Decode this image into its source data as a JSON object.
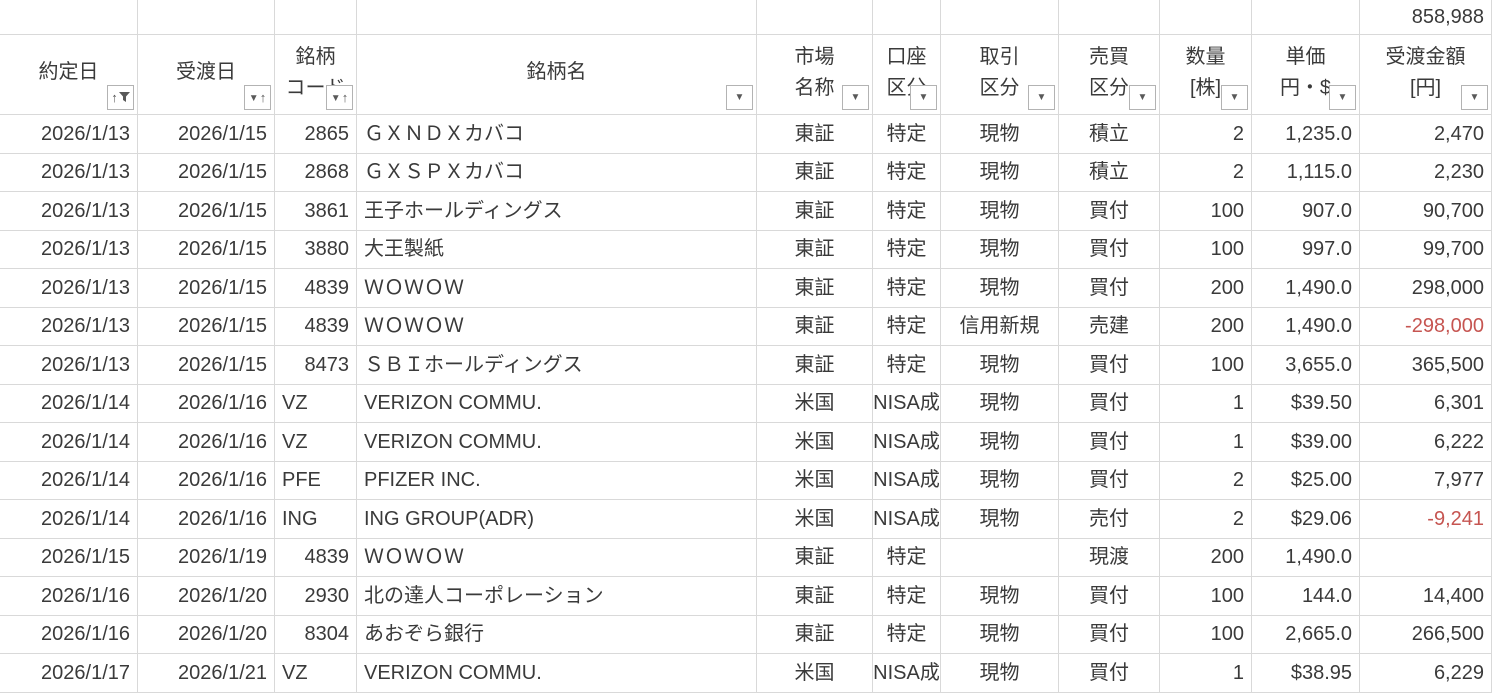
{
  "sheet": {
    "total_top_right": "858,988",
    "colors": {
      "negative": "#c65551",
      "text": "#3a3a3a",
      "gridline": "#d9d9d9"
    },
    "columns": [
      {
        "id": "trade_date",
        "line1": "約定日",
        "line2": "",
        "filter_icon": "sort-asc-filter-icon",
        "align": "right"
      },
      {
        "id": "settlement_date",
        "line1": "受渡日",
        "line2": "",
        "filter_icon": "sort-asc-icon",
        "align": "right"
      },
      {
        "id": "code",
        "line1": "銘柄",
        "line2": "コード",
        "filter_icon": "sort-asc-icon",
        "align": "auto"
      },
      {
        "id": "name",
        "line1": "銘柄名",
        "line2": "",
        "filter_icon": "dropdown-icon",
        "align": "left"
      },
      {
        "id": "market",
        "line1": "市場",
        "line2": "名称",
        "filter_icon": "dropdown-icon",
        "align": "center"
      },
      {
        "id": "account",
        "line1": "口座",
        "line2": "区分",
        "filter_icon": "dropdown-icon",
        "align": "center"
      },
      {
        "id": "transaction",
        "line1": "取引",
        "line2": "区分",
        "filter_icon": "dropdown-icon",
        "align": "center"
      },
      {
        "id": "side",
        "line1": "売買",
        "line2": "区分",
        "filter_icon": "dropdown-icon",
        "align": "center"
      },
      {
        "id": "quantity",
        "line1": "数量",
        "line2": "[株]",
        "filter_icon": "dropdown-icon",
        "align": "right"
      },
      {
        "id": "price",
        "line1": "単価",
        "line2": "円・$",
        "filter_icon": "dropdown-icon",
        "align": "right"
      },
      {
        "id": "amount",
        "line1": "受渡金額",
        "line2": "[円]",
        "filter_icon": "dropdown-icon",
        "align": "right"
      }
    ],
    "rows": [
      [
        "2026/1/13",
        "2026/1/15",
        "2865",
        "ＧＸＮＤＸカバコ",
        "東証",
        "特定",
        "現物",
        "積立",
        "2",
        "1,235.0",
        "2,470"
      ],
      [
        "2026/1/13",
        "2026/1/15",
        "2868",
        "ＧＸＳＰＸカバコ",
        "東証",
        "特定",
        "現物",
        "積立",
        "2",
        "1,115.0",
        "2,230"
      ],
      [
        "2026/1/13",
        "2026/1/15",
        "3861",
        "王子ホールディングス",
        "東証",
        "特定",
        "現物",
        "買付",
        "100",
        "907.0",
        "90,700"
      ],
      [
        "2026/1/13",
        "2026/1/15",
        "3880",
        "大王製紙",
        "東証",
        "特定",
        "現物",
        "買付",
        "100",
        "997.0",
        "99,700"
      ],
      [
        "2026/1/13",
        "2026/1/15",
        "4839",
        "ＷＯＷＯＷ",
        "東証",
        "特定",
        "現物",
        "買付",
        "200",
        "1,490.0",
        "298,000"
      ],
      [
        "2026/1/13",
        "2026/1/15",
        "4839",
        "ＷＯＷＯＷ",
        "東証",
        "特定",
        "信用新規",
        "売建",
        "200",
        "1,490.0",
        "-298,000"
      ],
      [
        "2026/1/13",
        "2026/1/15",
        "8473",
        "ＳＢＩホールディングス",
        "東証",
        "特定",
        "現物",
        "買付",
        "100",
        "3,655.0",
        "365,500"
      ],
      [
        "2026/1/14",
        "2026/1/16",
        "VZ",
        "VERIZON COMMU.",
        "米国",
        "NISA成",
        "現物",
        "買付",
        "1",
        "$39.50",
        "6,301"
      ],
      [
        "2026/1/14",
        "2026/1/16",
        "VZ",
        "VERIZON COMMU.",
        "米国",
        "NISA成",
        "現物",
        "買付",
        "1",
        "$39.00",
        "6,222"
      ],
      [
        "2026/1/14",
        "2026/1/16",
        "PFE",
        "PFIZER INC.",
        "米国",
        "NISA成",
        "現物",
        "買付",
        "2",
        "$25.00",
        "7,977"
      ],
      [
        "2026/1/14",
        "2026/1/16",
        "ING",
        "ING GROUP(ADR)",
        "米国",
        "NISA成",
        "現物",
        "売付",
        "2",
        "$29.06",
        "-9,241"
      ],
      [
        "2026/1/15",
        "2026/1/19",
        "4839",
        "ＷＯＷＯＷ",
        "東証",
        "特定",
        "",
        "現渡",
        "200",
        "1,490.0",
        ""
      ],
      [
        "2026/1/16",
        "2026/1/20",
        "2930",
        "北の達人コーポレーション",
        "東証",
        "特定",
        "現物",
        "買付",
        "100",
        "144.0",
        "14,400"
      ],
      [
        "2026/1/16",
        "2026/1/20",
        "8304",
        "あおぞら銀行",
        "東証",
        "特定",
        "現物",
        "買付",
        "100",
        "2,665.0",
        "266,500"
      ],
      [
        "2026/1/17",
        "2026/1/21",
        "VZ",
        "VERIZON COMMU.",
        "米国",
        "NISA成",
        "現物",
        "買付",
        "1",
        "$38.95",
        "6,229"
      ]
    ]
  }
}
